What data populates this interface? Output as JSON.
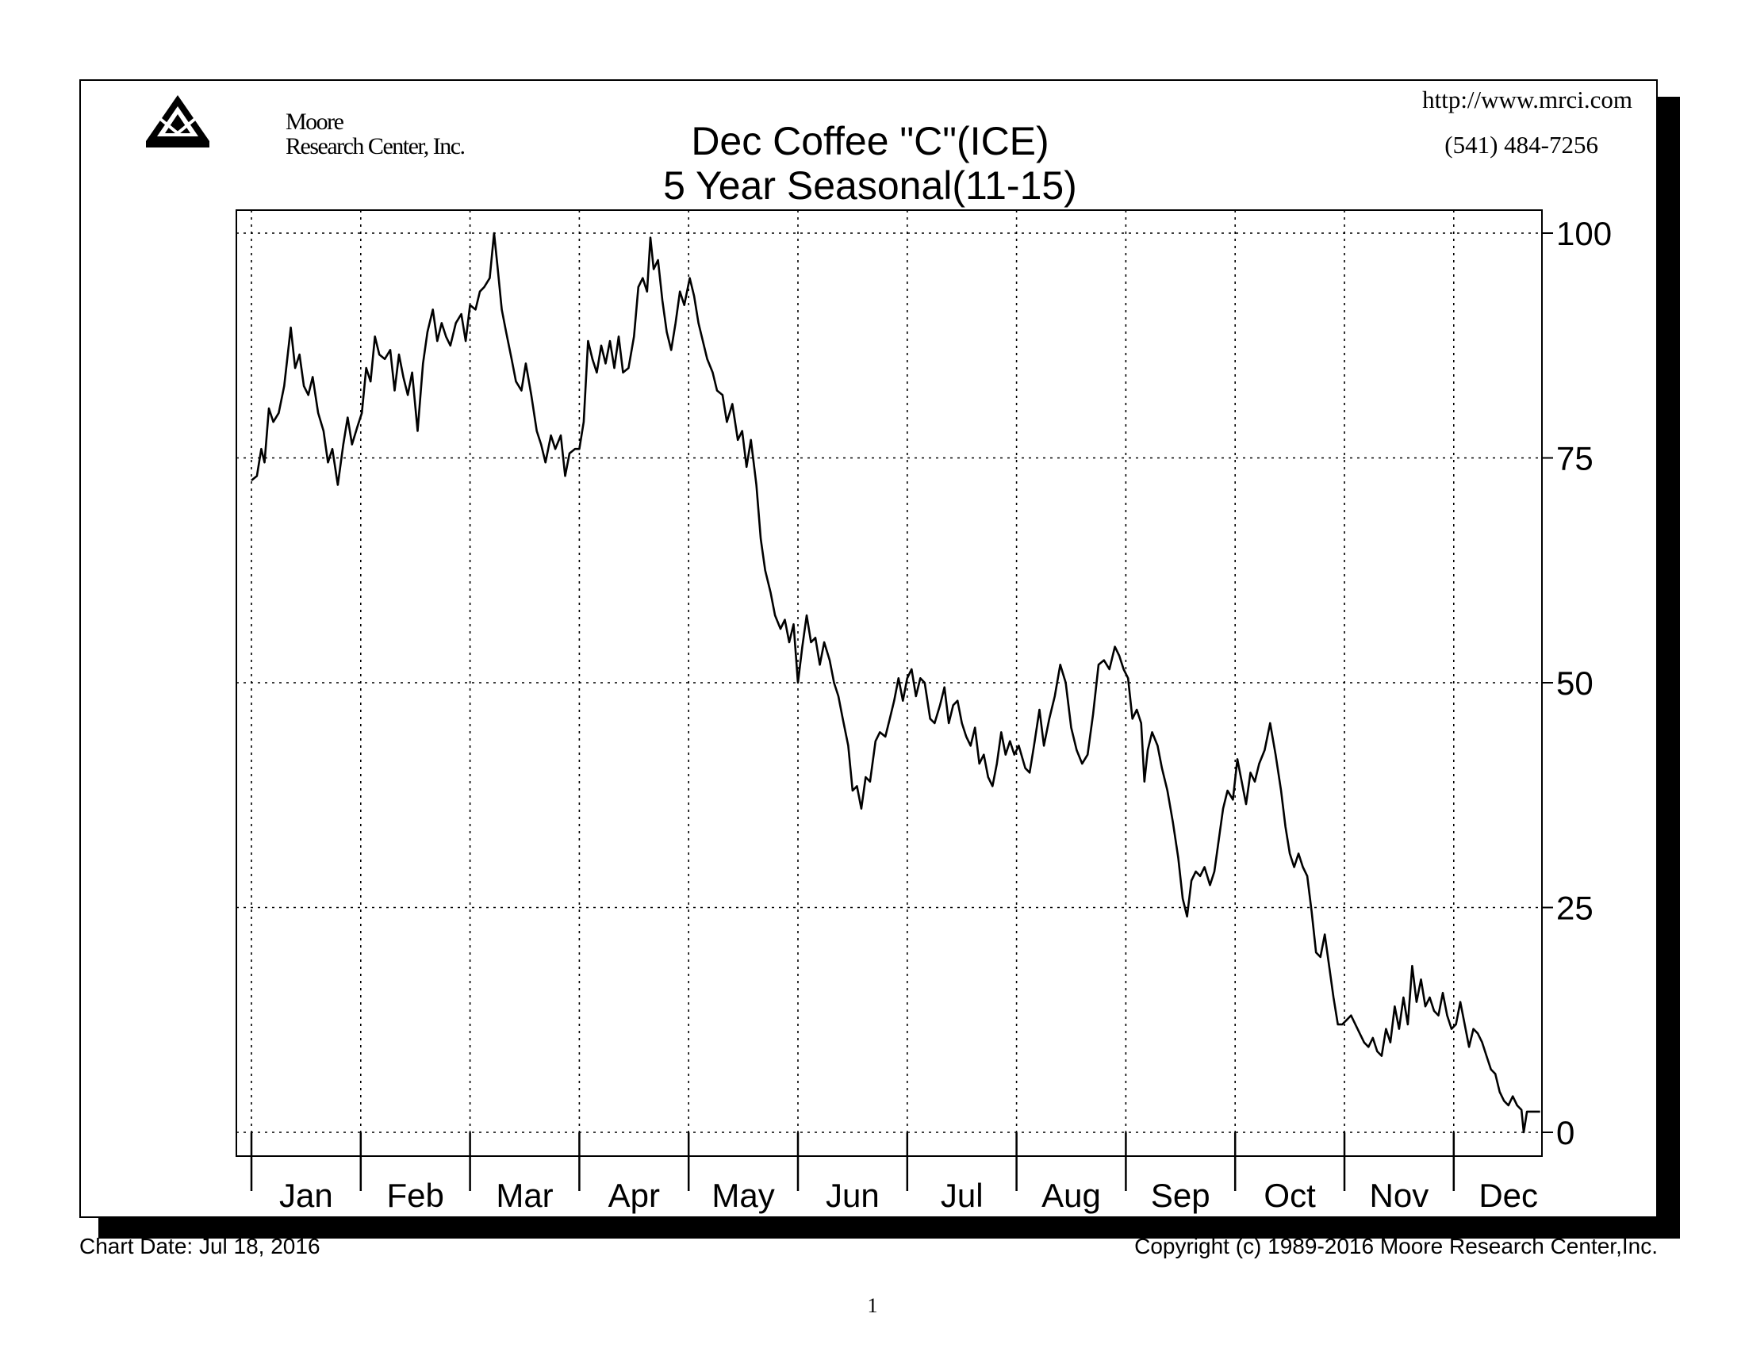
{
  "header": {
    "logo_text_line1": "Moore",
    "logo_text_line2": "Research Center, Inc.",
    "website": "http://www.mrci.com",
    "phone": "(541) 484-7256"
  },
  "footer": {
    "chart_date": "Chart Date: Jul 18, 2016",
    "copyright": "Copyright (c) 1989-2016 Moore Research Center,Inc.",
    "page_number": "1"
  },
  "chart_data": {
    "type": "line",
    "title": "Dec Coffee \"C\"(ICE)",
    "subtitle": "5 Year Seasonal(11-15)",
    "xlabel": "",
    "ylabel": "",
    "ylim": [
      0,
      100
    ],
    "yticks": [
      0,
      25,
      50,
      75,
      100
    ],
    "y_axis_side": "right",
    "grid": true,
    "grid_style": "dotted",
    "months": [
      "Jan",
      "Feb",
      "Mar",
      "Apr",
      "May",
      "Jun",
      "Jul",
      "Aug",
      "Sep",
      "Oct",
      "Nov",
      "Dec"
    ],
    "x_unit": "month (fractional, 0 = start of Jan, 12 = end of Dec)",
    "series": [
      {
        "color": "#000000",
        "points": [
          [
            0.0,
            72.5
          ],
          [
            0.05,
            73.0
          ],
          [
            0.09,
            76.0
          ],
          [
            0.12,
            74.5
          ],
          [
            0.16,
            80.5
          ],
          [
            0.2,
            79.0
          ],
          [
            0.25,
            80.0
          ],
          [
            0.3,
            83.0
          ],
          [
            0.36,
            89.5
          ],
          [
            0.4,
            85.0
          ],
          [
            0.44,
            86.5
          ],
          [
            0.48,
            83.0
          ],
          [
            0.52,
            82.0
          ],
          [
            0.56,
            84.0
          ],
          [
            0.61,
            80.0
          ],
          [
            0.66,
            78.0
          ],
          [
            0.7,
            74.5
          ],
          [
            0.74,
            76.0
          ],
          [
            0.79,
            72.0
          ],
          [
            0.84,
            76.5
          ],
          [
            0.88,
            79.5
          ],
          [
            0.92,
            76.5
          ],
          [
            0.97,
            78.5
          ],
          [
            1.01,
            80.0
          ],
          [
            1.05,
            85.0
          ],
          [
            1.09,
            83.5
          ],
          [
            1.13,
            88.5
          ],
          [
            1.17,
            86.5
          ],
          [
            1.22,
            86.0
          ],
          [
            1.27,
            87.0
          ],
          [
            1.31,
            82.5
          ],
          [
            1.35,
            86.5
          ],
          [
            1.39,
            84.0
          ],
          [
            1.43,
            82.0
          ],
          [
            1.47,
            84.5
          ],
          [
            1.52,
            78.0
          ],
          [
            1.57,
            85.5
          ],
          [
            1.61,
            89.0
          ],
          [
            1.66,
            91.5
          ],
          [
            1.7,
            88.0
          ],
          [
            1.74,
            90.0
          ],
          [
            1.78,
            88.5
          ],
          [
            1.82,
            87.5
          ],
          [
            1.87,
            90.0
          ],
          [
            1.92,
            91.0
          ],
          [
            1.96,
            88.0
          ],
          [
            2.0,
            92.0
          ],
          [
            2.05,
            91.5
          ],
          [
            2.09,
            93.5
          ],
          [
            2.13,
            94.0
          ],
          [
            2.18,
            95.0
          ],
          [
            2.22,
            100.0
          ],
          [
            2.25,
            96.5
          ],
          [
            2.29,
            91.5
          ],
          [
            2.33,
            89.0
          ],
          [
            2.38,
            86.0
          ],
          [
            2.42,
            83.5
          ],
          [
            2.47,
            82.5
          ],
          [
            2.51,
            85.5
          ],
          [
            2.56,
            82.0
          ],
          [
            2.61,
            78.0
          ],
          [
            2.65,
            76.5
          ],
          [
            2.69,
            74.5
          ],
          [
            2.74,
            77.5
          ],
          [
            2.78,
            76.0
          ],
          [
            2.83,
            77.5
          ],
          [
            2.87,
            73.0
          ],
          [
            2.91,
            75.5
          ],
          [
            2.96,
            76.0
          ],
          [
            3.0,
            76.0
          ],
          [
            3.04,
            79.0
          ],
          [
            3.08,
            88.0
          ],
          [
            3.12,
            86.0
          ],
          [
            3.16,
            84.5
          ],
          [
            3.2,
            87.5
          ],
          [
            3.24,
            85.5
          ],
          [
            3.28,
            88.0
          ],
          [
            3.32,
            85.0
          ],
          [
            3.36,
            88.5
          ],
          [
            3.4,
            84.5
          ],
          [
            3.45,
            85.0
          ],
          [
            3.5,
            88.5
          ],
          [
            3.54,
            94.0
          ],
          [
            3.58,
            95.0
          ],
          [
            3.62,
            93.5
          ],
          [
            3.65,
            99.5
          ],
          [
            3.68,
            96.0
          ],
          [
            3.72,
            97.0
          ],
          [
            3.76,
            92.5
          ],
          [
            3.8,
            89.0
          ],
          [
            3.84,
            87.0
          ],
          [
            3.88,
            90.0
          ],
          [
            3.92,
            93.5
          ],
          [
            3.96,
            92.0
          ],
          [
            4.01,
            95.0
          ],
          [
            4.05,
            93.0
          ],
          [
            4.09,
            90.0
          ],
          [
            4.13,
            88.0
          ],
          [
            4.17,
            86.0
          ],
          [
            4.22,
            84.5
          ],
          [
            4.26,
            82.5
          ],
          [
            4.31,
            82.0
          ],
          [
            4.35,
            79.0
          ],
          [
            4.4,
            81.0
          ],
          [
            4.45,
            77.0
          ],
          [
            4.49,
            78.0
          ],
          [
            4.53,
            74.0
          ],
          [
            4.57,
            77.0
          ],
          [
            4.62,
            72.0
          ],
          [
            4.66,
            66.0
          ],
          [
            4.7,
            62.5
          ],
          [
            4.75,
            60.0
          ],
          [
            4.79,
            57.5
          ],
          [
            4.84,
            56.0
          ],
          [
            4.88,
            57.0
          ],
          [
            4.92,
            54.5
          ],
          [
            4.96,
            56.5
          ],
          [
            5.0,
            50.0
          ],
          [
            5.04,
            54.0
          ],
          [
            5.08,
            57.5
          ],
          [
            5.12,
            54.5
          ],
          [
            5.16,
            55.0
          ],
          [
            5.2,
            52.0
          ],
          [
            5.24,
            54.5
          ],
          [
            5.29,
            52.5
          ],
          [
            5.33,
            50.0
          ],
          [
            5.37,
            48.5
          ],
          [
            5.41,
            46.0
          ],
          [
            5.46,
            43.0
          ],
          [
            5.5,
            38.0
          ],
          [
            5.54,
            38.5
          ],
          [
            5.58,
            36.0
          ],
          [
            5.62,
            39.5
          ],
          [
            5.66,
            39.0
          ],
          [
            5.71,
            43.5
          ],
          [
            5.75,
            44.5
          ],
          [
            5.8,
            44.0
          ],
          [
            5.84,
            46.0
          ],
          [
            5.88,
            48.0
          ],
          [
            5.92,
            50.5
          ],
          [
            5.96,
            48.0
          ],
          [
            6.0,
            50.5
          ],
          [
            6.04,
            51.5
          ],
          [
            6.08,
            48.5
          ],
          [
            6.12,
            50.5
          ],
          [
            6.16,
            50.0
          ],
          [
            6.21,
            46.0
          ],
          [
            6.25,
            45.5
          ],
          [
            6.3,
            47.5
          ],
          [
            6.34,
            49.5
          ],
          [
            6.38,
            45.5
          ],
          [
            6.42,
            47.5
          ],
          [
            6.46,
            48.0
          ],
          [
            6.5,
            45.5
          ],
          [
            6.54,
            44.0
          ],
          [
            6.58,
            43.0
          ],
          [
            6.62,
            45.0
          ],
          [
            6.66,
            41.0
          ],
          [
            6.7,
            42.0
          ],
          [
            6.74,
            39.5
          ],
          [
            6.78,
            38.5
          ],
          [
            6.82,
            41.0
          ],
          [
            6.86,
            44.5
          ],
          [
            6.9,
            42.0
          ],
          [
            6.94,
            43.5
          ],
          [
            6.98,
            42.0
          ],
          [
            7.02,
            43.0
          ],
          [
            7.08,
            40.5
          ],
          [
            7.12,
            40.0
          ],
          [
            7.16,
            43.0
          ],
          [
            7.21,
            47.0
          ],
          [
            7.25,
            43.0
          ],
          [
            7.3,
            46.0
          ],
          [
            7.35,
            48.5
          ],
          [
            7.4,
            52.0
          ],
          [
            7.45,
            50.0
          ],
          [
            7.5,
            45.0
          ],
          [
            7.55,
            42.5
          ],
          [
            7.6,
            41.0
          ],
          [
            7.65,
            42.0
          ],
          [
            7.7,
            46.5
          ],
          [
            7.75,
            52.0
          ],
          [
            7.8,
            52.5
          ],
          [
            7.85,
            51.5
          ],
          [
            7.9,
            54.0
          ],
          [
            7.94,
            53.0
          ],
          [
            7.98,
            51.5
          ],
          [
            8.02,
            50.5
          ],
          [
            8.06,
            46.0
          ],
          [
            8.1,
            47.0
          ],
          [
            8.14,
            45.5
          ],
          [
            8.17,
            39.0
          ],
          [
            8.2,
            42.5
          ],
          [
            8.24,
            44.5
          ],
          [
            8.29,
            43.0
          ],
          [
            8.33,
            40.5
          ],
          [
            8.38,
            38.0
          ],
          [
            8.43,
            34.5
          ],
          [
            8.48,
            30.5
          ],
          [
            8.52,
            26.0
          ],
          [
            8.56,
            24.0
          ],
          [
            8.6,
            28.0
          ],
          [
            8.64,
            29.0
          ],
          [
            8.68,
            28.5
          ],
          [
            8.72,
            29.5
          ],
          [
            8.77,
            27.5
          ],
          [
            8.81,
            29.0
          ],
          [
            8.85,
            32.5
          ],
          [
            8.89,
            36.0
          ],
          [
            8.93,
            38.0
          ],
          [
            8.98,
            37.0
          ],
          [
            9.02,
            41.5
          ],
          [
            9.06,
            39.0
          ],
          [
            9.1,
            36.5
          ],
          [
            9.14,
            40.0
          ],
          [
            9.18,
            39.0
          ],
          [
            9.22,
            41.0
          ],
          [
            9.27,
            42.5
          ],
          [
            9.32,
            45.5
          ],
          [
            9.37,
            42.0
          ],
          [
            9.42,
            38.0
          ],
          [
            9.46,
            34.0
          ],
          [
            9.5,
            31.0
          ],
          [
            9.54,
            29.5
          ],
          [
            9.58,
            31.0
          ],
          [
            9.62,
            29.5
          ],
          [
            9.66,
            28.5
          ],
          [
            9.7,
            24.5
          ],
          [
            9.74,
            20.0
          ],
          [
            9.78,
            19.5
          ],
          [
            9.82,
            22.0
          ],
          [
            9.86,
            18.5
          ],
          [
            9.9,
            15.0
          ],
          [
            9.94,
            12.0
          ],
          [
            9.98,
            12.0
          ],
          [
            10.02,
            12.5
          ],
          [
            10.06,
            13.0
          ],
          [
            10.1,
            12.0
          ],
          [
            10.14,
            11.0
          ],
          [
            10.18,
            10.0
          ],
          [
            10.22,
            9.5
          ],
          [
            10.26,
            10.5
          ],
          [
            10.3,
            9.0
          ],
          [
            10.34,
            8.5
          ],
          [
            10.38,
            11.5
          ],
          [
            10.42,
            10.0
          ],
          [
            10.46,
            14.0
          ],
          [
            10.5,
            11.5
          ],
          [
            10.54,
            15.0
          ],
          [
            10.58,
            12.0
          ],
          [
            10.62,
            18.5
          ],
          [
            10.66,
            14.5
          ],
          [
            10.7,
            17.0
          ],
          [
            10.74,
            14.0
          ],
          [
            10.78,
            15.0
          ],
          [
            10.82,
            13.5
          ],
          [
            10.86,
            13.0
          ],
          [
            10.9,
            15.5
          ],
          [
            10.94,
            13.0
          ],
          [
            10.98,
            11.5
          ],
          [
            11.02,
            12.0
          ],
          [
            11.06,
            14.5
          ],
          [
            11.1,
            12.0
          ],
          [
            11.14,
            9.5
          ],
          [
            11.18,
            11.5
          ],
          [
            11.22,
            11.0
          ],
          [
            11.26,
            10.0
          ],
          [
            11.3,
            8.5
          ],
          [
            11.34,
            7.0
          ],
          [
            11.38,
            6.5
          ],
          [
            11.42,
            4.5
          ],
          [
            11.46,
            3.5
          ],
          [
            11.5,
            3.0
          ],
          [
            11.54,
            4.0
          ],
          [
            11.58,
            3.0
          ],
          [
            11.62,
            2.5
          ],
          [
            11.64,
            0.0
          ],
          [
            11.67,
            2.3
          ],
          [
            11.75,
            2.3
          ],
          [
            11.79,
            2.3
          ]
        ]
      }
    ]
  }
}
